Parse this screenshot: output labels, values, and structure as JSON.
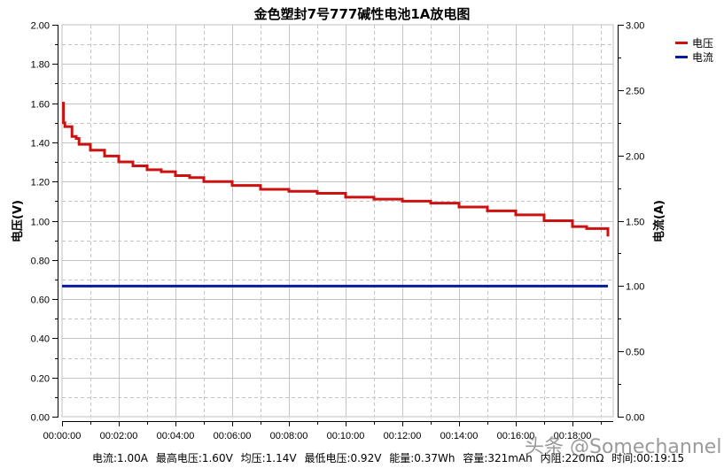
{
  "title": "金色塑封7号777碱性电池1A放电图",
  "legend": [
    {
      "label": "电压",
      "color": "#cc1111"
    },
    {
      "label": "电流",
      "color": "#0a1aa0"
    }
  ],
  "stats": [
    "电流:1.00A",
    "最高电压:1.60V",
    "均压:1.14V",
    "最低电压:0.92V",
    "能量:0.37Wh",
    "容量:321mAh",
    "内阻:220mΩ",
    "时间:00:19:15"
  ],
  "watermark": "头条 @Somechannel",
  "chart_data": {
    "type": "line",
    "title": "金色塑封7号777碱性电池1A放电图",
    "xlabel": "",
    "ylabel": "电压(V)",
    "y2label": "电流(A)",
    "xlim_minutes": [
      0,
      19.25
    ],
    "ylim": [
      0,
      2.0
    ],
    "y2lim": [
      0,
      3.0
    ],
    "x_tick_labels": [
      "00:00:00",
      "00:02:00",
      "00:04:00",
      "00:06:00",
      "00:08:00",
      "00:10:00",
      "00:12:00",
      "00:14:00",
      "00:16:00",
      "00:18:00"
    ],
    "y_tick_labels": [
      "0.00",
      "0.20",
      "0.40",
      "0.60",
      "0.80",
      "1.00",
      "1.20",
      "1.40",
      "1.60",
      "1.80",
      "2.00"
    ],
    "y2_tick_labels": [
      "0.00",
      "0.50",
      "1.00",
      "1.50",
      "2.00",
      "2.50",
      "3.00"
    ],
    "grid": true,
    "legend_position": "top-right-outside",
    "series": [
      {
        "name": "电压",
        "axis": "left",
        "color": "#cc1111",
        "x_minutes": [
          0,
          0.05,
          0.1,
          0.3,
          0.35,
          0.5,
          0.6,
          1.0,
          1.5,
          2.0,
          2.5,
          3.0,
          3.5,
          4.0,
          4.5,
          5.0,
          6.0,
          7.0,
          8.0,
          9.0,
          10.0,
          11.0,
          12.0,
          13.0,
          14.0,
          15.0,
          16.0,
          17.0,
          18.0,
          18.5,
          19.25
        ],
        "values": [
          1.6,
          1.5,
          1.48,
          1.48,
          1.43,
          1.42,
          1.39,
          1.36,
          1.33,
          1.3,
          1.28,
          1.26,
          1.25,
          1.23,
          1.22,
          1.2,
          1.18,
          1.16,
          1.15,
          1.14,
          1.12,
          1.11,
          1.1,
          1.09,
          1.07,
          1.05,
          1.03,
          1.0,
          0.97,
          0.96,
          0.92
        ]
      },
      {
        "name": "电流",
        "axis": "right",
        "color": "#0a1aa0",
        "x_minutes": [
          0,
          19.25
        ],
        "values": [
          1.0,
          1.0
        ]
      }
    ]
  }
}
